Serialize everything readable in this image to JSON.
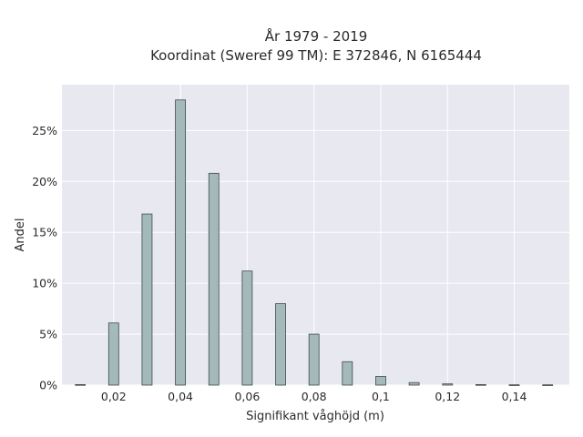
{
  "chart_data": {
    "type": "bar",
    "title_line1": "År 1979 - 2019",
    "title_line2": "Koordinat (Sweref 99 TM): E 372846, N 6165444",
    "xlabel": "Signifikant våghöjd (m)",
    "ylabel": "Andel",
    "xlim": [
      0.0045,
      0.1565
    ],
    "ylim": [
      0,
      0.295
    ],
    "x_ticks": [
      0.02,
      0.04,
      0.06,
      0.08,
      0.1,
      0.12,
      0.14
    ],
    "x_tick_labels": [
      "0,02",
      "0,04",
      "0,06",
      "0,08",
      "0,1",
      "0,12",
      "0,14"
    ],
    "y_ticks": [
      0,
      0.05,
      0.1,
      0.15,
      0.2,
      0.25
    ],
    "y_tick_labels": [
      "0%",
      "5%",
      "10%",
      "15%",
      "20%",
      "25%"
    ],
    "bar_width": 0.003,
    "x": [
      0.01,
      0.02,
      0.03,
      0.04,
      0.05,
      0.06,
      0.07,
      0.08,
      0.09,
      0.1,
      0.11,
      0.12,
      0.13,
      0.14,
      0.15
    ],
    "values": [
      0.0005,
      0.061,
      0.168,
      0.28,
      0.208,
      0.112,
      0.08,
      0.05,
      0.023,
      0.0085,
      0.0025,
      0.0012,
      0.0005,
      0.0003,
      0.0003
    ],
    "grid": true,
    "colors": {
      "plot_bg": "#e8e8f1",
      "bar_fill": "#a4b9ba",
      "bar_stroke": "#3c4a4a",
      "grid": "#ffffff"
    }
  }
}
